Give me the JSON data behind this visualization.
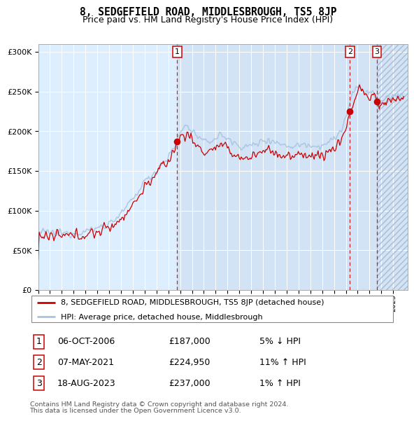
{
  "title": "8, SEDGEFIELD ROAD, MIDDLESBROUGH, TS5 8JP",
  "subtitle": "Price paid vs. HM Land Registry's House Price Index (HPI)",
  "legend_line1": "8, SEDGEFIELD ROAD, MIDDLESBROUGH, TS5 8JP (detached house)",
  "legend_line2": "HPI: Average price, detached house, Middlesbrough",
  "sale1_date": "06-OCT-2006",
  "sale1_price": 187000,
  "sale1_label": "1",
  "sale1_hpi_text": "5% ↓ HPI",
  "sale2_date": "07-MAY-2021",
  "sale2_price": 224950,
  "sale2_label": "2",
  "sale2_hpi_text": "11% ↑ HPI",
  "sale3_date": "18-AUG-2023",
  "sale3_price": 237000,
  "sale3_label": "3",
  "sale3_hpi_text": "1% ↑ HPI",
  "footer1": "Contains HM Land Registry data © Crown copyright and database right 2024.",
  "footer2": "This data is licensed under the Open Government Licence v3.0.",
  "hpi_color": "#a8c4e0",
  "price_color": "#cc0000",
  "sale_dot_color": "#cc0000",
  "vline_color": "#cc0000",
  "bg_chart_color": "#ddeeff",
  "ylim_max": 310000,
  "yticks": [
    0,
    50000,
    100000,
    150000,
    200000,
    250000,
    300000
  ],
  "sale1_x": 2006.75,
  "sale2_x": 2021.35,
  "sale3_x": 2023.62,
  "xstart": 1995.0,
  "xend": 2026.0,
  "hpi_anchors_x": [
    1995.0,
    1996.0,
    1997.0,
    1998.0,
    1999.0,
    2000.0,
    2001.0,
    2002.0,
    2003.0,
    2004.0,
    2004.5,
    2005.0,
    2006.0,
    2006.5,
    2007.0,
    2007.5,
    2008.0,
    2008.5,
    2009.0,
    2009.5,
    2010.0,
    2010.5,
    2011.0,
    2011.5,
    2012.0,
    2012.5,
    2013.0,
    2013.5,
    2014.0,
    2014.5,
    2015.0,
    2015.5,
    2016.0,
    2016.5,
    2017.0,
    2017.5,
    2018.0,
    2018.5,
    2019.0,
    2019.5,
    2020.0,
    2020.5,
    2021.0,
    2021.35,
    2021.8,
    2022.0,
    2022.3,
    2022.7,
    2023.0,
    2023.3,
    2023.62,
    2024.0,
    2024.5,
    2025.0,
    2025.5,
    2025.9
  ],
  "hpi_anchors_y": [
    73000,
    72000,
    71500,
    72000,
    74000,
    78000,
    84000,
    96000,
    115000,
    138000,
    143000,
    152000,
    168000,
    180000,
    200000,
    208000,
    200000,
    193000,
    185000,
    188000,
    192000,
    196000,
    190000,
    185000,
    182000,
    180000,
    182000,
    185000,
    188000,
    190000,
    187000,
    183000,
    182000,
    181000,
    183000,
    184000,
    183000,
    181000,
    183000,
    186000,
    190000,
    200000,
    218000,
    240000,
    252000,
    258000,
    255000,
    248000,
    250000,
    248000,
    238000,
    240000,
    242000,
    244000,
    246000,
    248000
  ],
  "price_anchors_x": [
    1995.0,
    1996.0,
    1997.0,
    1998.0,
    1999.0,
    2000.0,
    2001.0,
    2002.0,
    2003.0,
    2004.0,
    2005.0,
    2006.0,
    2006.5,
    2006.75,
    2007.0,
    2007.5,
    2008.0,
    2008.5,
    2009.0,
    2009.5,
    2010.0,
    2010.5,
    2011.0,
    2011.5,
    2012.0,
    2012.5,
    2013.0,
    2013.5,
    2014.0,
    2014.5,
    2015.0,
    2015.5,
    2016.0,
    2016.5,
    2017.0,
    2017.5,
    2018.0,
    2018.5,
    2019.0,
    2019.5,
    2020.0,
    2020.5,
    2021.0,
    2021.35,
    2021.8,
    2022.0,
    2022.5,
    2023.0,
    2023.3,
    2023.62,
    2024.0,
    2024.5,
    2025.0,
    2025.5,
    2025.9
  ],
  "price_anchors_y": [
    68000,
    67000,
    67500,
    68000,
    70000,
    73000,
    79000,
    90000,
    108000,
    130000,
    148000,
    163000,
    178000,
    187000,
    193000,
    198000,
    188000,
    180000,
    173000,
    176000,
    180000,
    182000,
    176000,
    171000,
    168000,
    165000,
    168000,
    172000,
    175000,
    178000,
    173000,
    169000,
    168000,
    167000,
    170000,
    172000,
    170000,
    168000,
    170000,
    174000,
    178000,
    188000,
    206000,
    224950,
    242000,
    258000,
    248000,
    238000,
    250000,
    237000,
    232000,
    238000,
    240000,
    242000,
    244000
  ]
}
